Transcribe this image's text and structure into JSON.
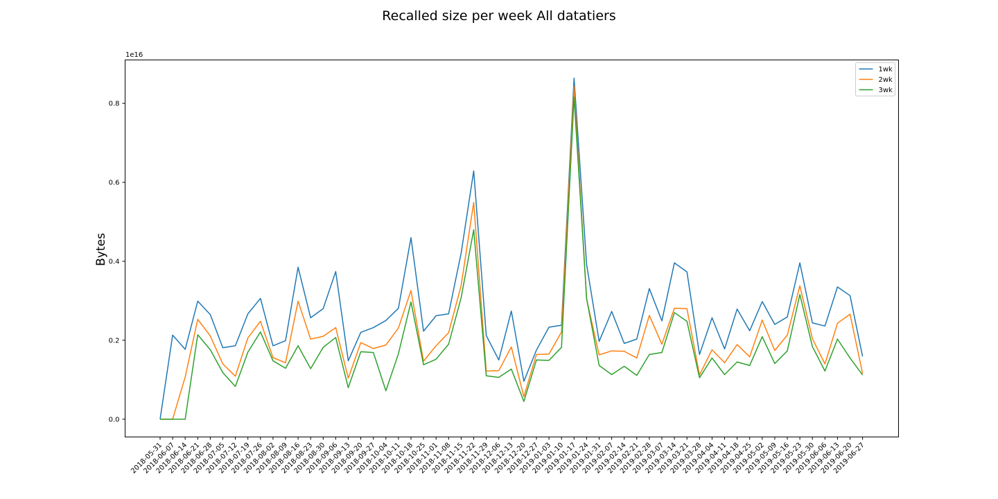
{
  "chart_data": {
    "type": "line",
    "title": "Recalled size per week All datatiers",
    "xlabel": "",
    "ylabel": "Bytes",
    "y_offset_label": "1e16",
    "ylim": [
      -0.045,
      0.91
    ],
    "yticks": [
      0.0,
      0.2,
      0.4,
      0.6,
      0.8
    ],
    "ytick_labels": [
      "0.0",
      "0.2",
      "0.4",
      "0.6",
      "0.8"
    ],
    "legend_position": "top-right",
    "grid": false,
    "categories": [
      "2018-05-31",
      "2018-06-07",
      "2018-06-14",
      "2018-06-21",
      "2018-06-28",
      "2018-07-05",
      "2018-07-12",
      "2018-07-19",
      "2018-07-26",
      "2018-08-02",
      "2018-08-09",
      "2018-08-16",
      "2018-08-23",
      "2018-08-30",
      "2018-09-06",
      "2018-09-13",
      "2018-09-20",
      "2018-09-27",
      "2018-10-04",
      "2018-10-11",
      "2018-10-18",
      "2018-10-25",
      "2018-11-01",
      "2018-11-08",
      "2018-11-15",
      "2018-11-22",
      "2018-11-29",
      "2018-12-06",
      "2018-12-13",
      "2018-12-20",
      "2018-12-27",
      "2019-01-03",
      "2019-01-10",
      "2019-01-17",
      "2019-01-24",
      "2019-01-31",
      "2019-02-07",
      "2019-02-14",
      "2019-02-21",
      "2019-02-28",
      "2019-03-07",
      "2019-03-14",
      "2019-03-21",
      "2019-03-28",
      "2019-04-04",
      "2019-04-11",
      "2019-04-18",
      "2019-04-25",
      "2019-05-02",
      "2019-05-09",
      "2019-05-16",
      "2019-05-23",
      "2019-05-30",
      "2019-06-06",
      "2019-06-13",
      "2019-06-20",
      "2019-06-27"
    ],
    "series": [
      {
        "name": "1wk",
        "color": "#1f77b4",
        "values": [
          0.0,
          0.213,
          0.177,
          0.299,
          0.265,
          0.181,
          0.186,
          0.267,
          0.306,
          0.186,
          0.199,
          0.385,
          0.257,
          0.28,
          0.374,
          0.148,
          0.22,
          0.232,
          0.25,
          0.281,
          0.46,
          0.223,
          0.262,
          0.267,
          0.421,
          0.629,
          0.212,
          0.15,
          0.274,
          0.096,
          0.175,
          0.233,
          0.238,
          0.864,
          0.392,
          0.197,
          0.273,
          0.192,
          0.203,
          0.331,
          0.249,
          0.396,
          0.373,
          0.164,
          0.257,
          0.178,
          0.279,
          0.224,
          0.298,
          0.24,
          0.259,
          0.396,
          0.244,
          0.236,
          0.335,
          0.313,
          0.159
        ]
      },
      {
        "name": "2wk",
        "color": "#ff7f0e",
        "values": [
          0.0,
          0.0,
          0.107,
          0.253,
          0.211,
          0.14,
          0.109,
          0.206,
          0.248,
          0.156,
          0.143,
          0.299,
          0.203,
          0.21,
          0.232,
          0.104,
          0.194,
          0.179,
          0.188,
          0.231,
          0.326,
          0.147,
          0.186,
          0.219,
          0.339,
          0.549,
          0.122,
          0.123,
          0.183,
          0.057,
          0.164,
          0.165,
          0.221,
          0.843,
          0.304,
          0.163,
          0.173,
          0.172,
          0.155,
          0.263,
          0.19,
          0.281,
          0.28,
          0.112,
          0.176,
          0.143,
          0.189,
          0.158,
          0.251,
          0.174,
          0.213,
          0.338,
          0.204,
          0.14,
          0.243,
          0.266,
          0.116
        ]
      },
      {
        "name": "3wk",
        "color": "#2ca02c",
        "values": [
          0.0,
          0.0,
          0.0,
          0.214,
          0.176,
          0.118,
          0.083,
          0.17,
          0.221,
          0.148,
          0.129,
          0.186,
          0.128,
          0.182,
          0.207,
          0.08,
          0.171,
          0.169,
          0.072,
          0.166,
          0.297,
          0.138,
          0.152,
          0.19,
          0.308,
          0.48,
          0.11,
          0.106,
          0.127,
          0.045,
          0.15,
          0.149,
          0.182,
          0.816,
          0.306,
          0.136,
          0.113,
          0.134,
          0.111,
          0.164,
          0.169,
          0.27,
          0.248,
          0.105,
          0.155,
          0.113,
          0.145,
          0.136,
          0.209,
          0.141,
          0.173,
          0.316,
          0.184,
          0.122,
          0.203,
          0.155,
          0.112
        ]
      }
    ]
  }
}
